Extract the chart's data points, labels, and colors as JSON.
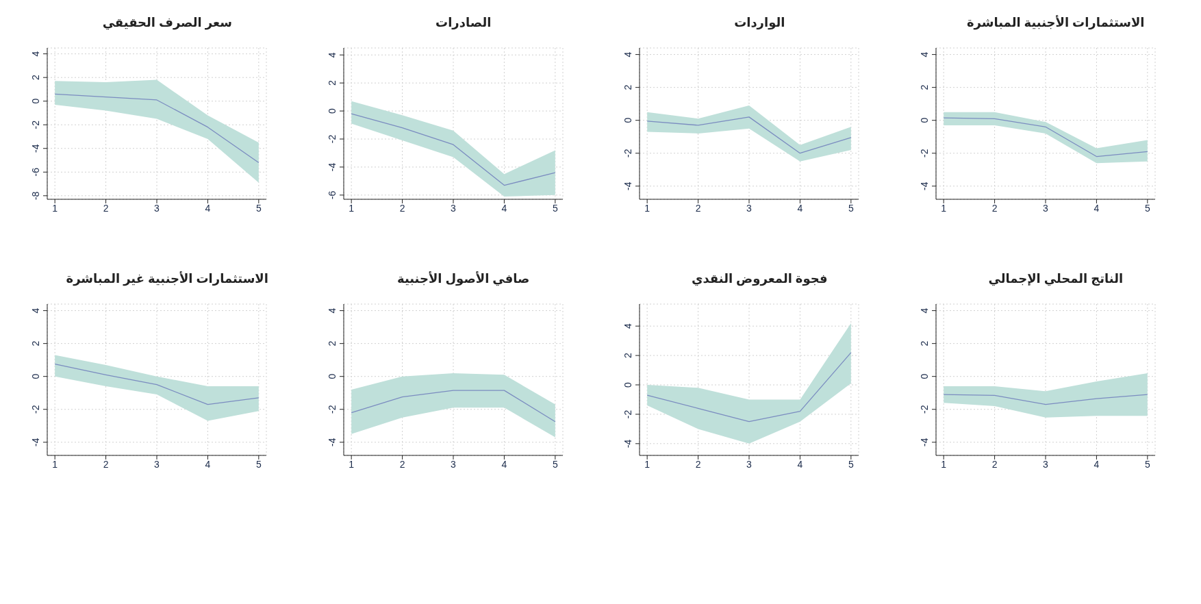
{
  "chart_data": [
    {
      "type": "line",
      "title": "سعر الصرف الحقيقي",
      "x": [
        1,
        2,
        3,
        4,
        5
      ],
      "xlim": [
        0.85,
        5.15
      ],
      "xticks": [
        1,
        2,
        3,
        4,
        5
      ],
      "ylim": [
        -8.3,
        4.5
      ],
      "yticks": [
        -8,
        -6,
        -4,
        -2,
        0,
        2,
        4
      ],
      "grid": true,
      "series": [
        {
          "color": "#7b8cc0",
          "values": [
            0.6,
            0.35,
            0.1,
            -2.2,
            -5.2
          ],
          "lower": [
            -0.3,
            -0.8,
            -1.5,
            -3.2,
            -6.9
          ],
          "upper": [
            1.7,
            1.6,
            1.8,
            -1.2,
            -3.5
          ]
        }
      ]
    },
    {
      "type": "line",
      "title": "الصادرات",
      "x": [
        1,
        2,
        3,
        4,
        5
      ],
      "xlim": [
        0.85,
        5.15
      ],
      "xticks": [
        1,
        2,
        3,
        4,
        5
      ],
      "ylim": [
        -6.3,
        4.5
      ],
      "yticks": [
        -6,
        -4,
        -2,
        0,
        2,
        4
      ],
      "grid": true,
      "series": [
        {
          "color": "#7b8cc0",
          "values": [
            -0.2,
            -1.2,
            -2.4,
            -5.3,
            -4.4
          ],
          "lower": [
            -0.9,
            -2.1,
            -3.3,
            -6.1,
            -6.0
          ],
          "upper": [
            0.7,
            -0.3,
            -1.4,
            -4.5,
            -2.8
          ]
        }
      ]
    },
    {
      "type": "line",
      "title": "الواردات",
      "x": [
        1,
        2,
        3,
        4,
        5
      ],
      "xlim": [
        0.85,
        5.15
      ],
      "xticks": [
        1,
        2,
        3,
        4,
        5
      ],
      "ylim": [
        -4.8,
        4.4
      ],
      "yticks": [
        -4,
        -2,
        0,
        2,
        4
      ],
      "grid": true,
      "series": [
        {
          "color": "#7b8cc0",
          "values": [
            -0.05,
            -0.3,
            0.2,
            -2.0,
            -1.05
          ],
          "lower": [
            -0.7,
            -0.8,
            -0.5,
            -2.5,
            -1.8
          ],
          "upper": [
            0.5,
            0.1,
            0.9,
            -1.5,
            -0.4
          ]
        }
      ]
    },
    {
      "type": "line",
      "title": "الاستثمارات الأجنبية المباشرة",
      "x": [
        1,
        2,
        3,
        4,
        5
      ],
      "xlim": [
        0.85,
        5.15
      ],
      "xticks": [
        1,
        2,
        3,
        4,
        5
      ],
      "ylim": [
        -4.8,
        4.4
      ],
      "yticks": [
        -4,
        -2,
        0,
        2,
        4
      ],
      "grid": true,
      "series": [
        {
          "color": "#7b8cc0",
          "values": [
            0.15,
            0.1,
            -0.4,
            -2.2,
            -1.9
          ],
          "lower": [
            -0.3,
            -0.3,
            -0.8,
            -2.6,
            -2.5
          ],
          "upper": [
            0.5,
            0.5,
            -0.1,
            -1.7,
            -1.2
          ]
        }
      ]
    },
    {
      "type": "line",
      "title": "الاستثمارات الأجنبية غير المباشرة",
      "x": [
        1,
        2,
        3,
        4,
        5
      ],
      "xlim": [
        0.85,
        5.15
      ],
      "xticks": [
        1,
        2,
        3,
        4,
        5
      ],
      "ylim": [
        -4.8,
        4.4
      ],
      "yticks": [
        -4,
        -2,
        0,
        2,
        4
      ],
      "grid": true,
      "series": [
        {
          "color": "#7b8cc0",
          "values": [
            0.75,
            0.1,
            -0.5,
            -1.7,
            -1.3
          ],
          "lower": [
            0.0,
            -0.6,
            -1.1,
            -2.7,
            -2.1
          ],
          "upper": [
            1.3,
            0.7,
            0.0,
            -0.6,
            -0.6
          ]
        }
      ]
    },
    {
      "type": "line",
      "title": "صافي الأصول الأجنبية",
      "x": [
        1,
        2,
        3,
        4,
        5
      ],
      "xlim": [
        0.85,
        5.15
      ],
      "xticks": [
        1,
        2,
        3,
        4,
        5
      ],
      "ylim": [
        -4.8,
        4.4
      ],
      "yticks": [
        -4,
        -2,
        0,
        2,
        4
      ],
      "grid": true,
      "series": [
        {
          "color": "#7b8cc0",
          "values": [
            -2.2,
            -1.25,
            -0.85,
            -0.85,
            -2.75
          ],
          "lower": [
            -3.5,
            -2.5,
            -1.9,
            -1.9,
            -3.7
          ],
          "upper": [
            -0.8,
            0.0,
            0.2,
            0.1,
            -1.7
          ]
        }
      ]
    },
    {
      "type": "line",
      "title": "فجوة المعروض النقدي",
      "x": [
        1,
        2,
        3,
        4,
        5
      ],
      "xlim": [
        0.85,
        5.15
      ],
      "xticks": [
        1,
        2,
        3,
        4,
        5
      ],
      "ylim": [
        -4.8,
        5.5
      ],
      "yticks": [
        -4,
        -2,
        0,
        2,
        4
      ],
      "grid": true,
      "series": [
        {
          "color": "#7b8cc0",
          "values": [
            -0.7,
            -1.6,
            -2.5,
            -1.8,
            2.2
          ],
          "lower": [
            -1.4,
            -3.0,
            -4.0,
            -2.5,
            0.1
          ],
          "upper": [
            0.0,
            -0.2,
            -1.0,
            -1.0,
            4.2
          ]
        }
      ]
    },
    {
      "type": "line",
      "title": "الناتج المحلي الإجمالي",
      "x": [
        1,
        2,
        3,
        4,
        5
      ],
      "xlim": [
        0.85,
        5.15
      ],
      "xticks": [
        1,
        2,
        3,
        4,
        5
      ],
      "ylim": [
        -4.8,
        4.4
      ],
      "yticks": [
        -4,
        -2,
        0,
        2,
        4
      ],
      "grid": true,
      "series": [
        {
          "color": "#7b8cc0",
          "values": [
            -1.1,
            -1.15,
            -1.7,
            -1.35,
            -1.1
          ],
          "lower": [
            -1.6,
            -1.8,
            -2.5,
            -2.4,
            -2.4
          ],
          "upper": [
            -0.6,
            -0.6,
            -0.9,
            -0.3,
            0.2
          ]
        }
      ]
    }
  ]
}
